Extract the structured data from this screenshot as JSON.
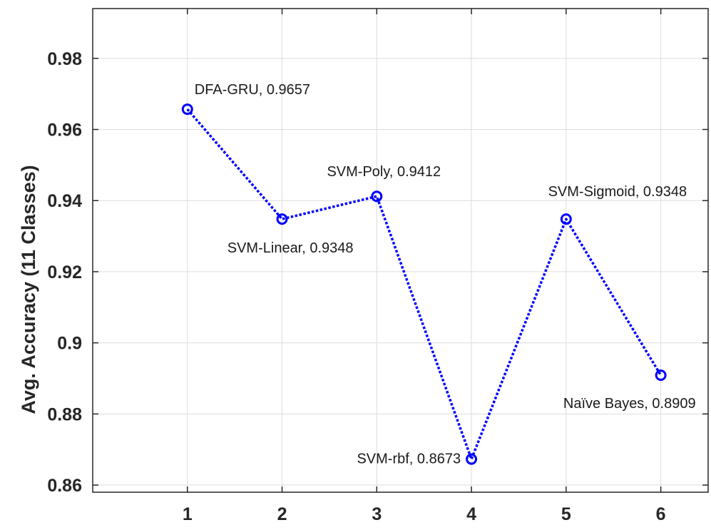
{
  "chart_data": {
    "type": "line",
    "title": "",
    "xlabel": "",
    "ylabel": "Avg. Accuracy (11 Classes)",
    "x": [
      1,
      2,
      3,
      4,
      5,
      6
    ],
    "xticks": [
      "1",
      "2",
      "3",
      "4",
      "5",
      "6"
    ],
    "xlim": [
      0,
      6.5
    ],
    "ylim": [
      0.858,
      0.994
    ],
    "yticks": [
      "0.86",
      "0.88",
      "0.9",
      "0.92",
      "0.94",
      "0.96",
      "0.98"
    ],
    "grid": true,
    "series": [
      {
        "values": [
          0.9657,
          0.9348,
          0.9412,
          0.8673,
          0.9348,
          0.8909
        ],
        "color": "#0000ff",
        "line_style": "dotted",
        "marker": "circle"
      }
    ],
    "annotations": [
      {
        "text": "DFA-GRU, 0.9657",
        "x": 1,
        "y": 0.9657,
        "position": "above-right"
      },
      {
        "text": "SVM-Linear, 0.9348",
        "x": 2,
        "y": 0.9348,
        "position": "below-left"
      },
      {
        "text": "SVM-Poly, 0.9412",
        "x": 3,
        "y": 0.9412,
        "position": "above"
      },
      {
        "text": "SVM-rbf, 0.8673",
        "x": 4,
        "y": 0.8673,
        "position": "left"
      },
      {
        "text": "SVM-Sigmoid, 0.9348",
        "x": 5,
        "y": 0.9348,
        "position": "above"
      },
      {
        "text": "Naïve Bayes, 0.8909",
        "x": 6,
        "y": 0.8909,
        "position": "below-left"
      }
    ]
  }
}
